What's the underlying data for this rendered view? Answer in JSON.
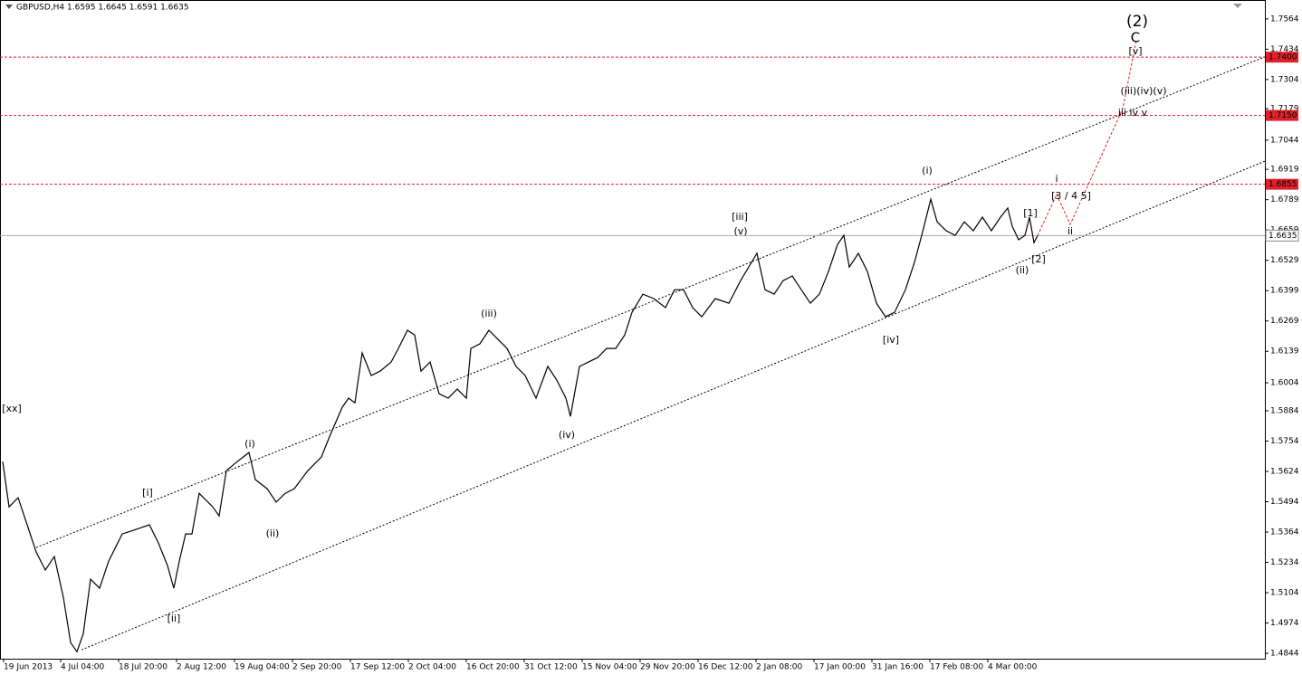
{
  "chart_data": {
    "type": "line",
    "title": "GBPUSD,H4  1.6595 1.6645 1.6591 1.6635",
    "xlim": [
      0,
      1397
    ],
    "xticks": [
      {
        "value": 4,
        "label": "19 Jun 2013"
      },
      {
        "value": 67,
        "label": "4 Jul 04:00"
      },
      {
        "value": 131,
        "label": "18 Jul 20:00"
      },
      {
        "value": 195,
        "label": "2 Aug 12:00"
      },
      {
        "value": 259,
        "label": "19 Aug 04:00"
      },
      {
        "value": 323,
        "label": "2 Sep 20:00"
      },
      {
        "value": 387,
        "label": "17 Sep 12:00"
      },
      {
        "value": 451,
        "label": "2 Oct 04:00"
      },
      {
        "value": 515,
        "label": "16 Oct 20:00"
      },
      {
        "value": 579,
        "label": "31 Oct 12:00"
      },
      {
        "value": 643,
        "label": "15 Nov 04:00"
      },
      {
        "value": 707,
        "label": "29 Nov 20:00"
      },
      {
        "value": 771,
        "label": "16 Dec 12:00"
      },
      {
        "value": 835,
        "label": "2 Jan 08:00"
      },
      {
        "value": 899,
        "label": "17 Jan 00:00"
      },
      {
        "value": 963,
        "label": "31 Jan 16:00"
      },
      {
        "value": 1027,
        "label": "17 Feb 08:00"
      },
      {
        "value": 1091,
        "label": "4 Mar 00:00"
      }
    ],
    "ylim": [
      1.4821,
      1.7645
    ],
    "yticks": [
      1.7564,
      1.7434,
      1.7304,
      1.7179,
      1.7044,
      1.6919,
      1.6789,
      1.6659,
      1.6529,
      1.6399,
      1.6269,
      1.6139,
      1.6004,
      1.5884,
      1.5754,
      1.5624,
      1.5494,
      1.5364,
      1.5234,
      1.5104,
      1.4974,
      1.4844
    ],
    "series": [
      {
        "color": "#000000",
        "dashed": false,
        "x": [
          3,
          10,
          20,
          30,
          40,
          50,
          60,
          70,
          78,
          85,
          92,
          100,
          110,
          120,
          135,
          150,
          165,
          175,
          185,
          192,
          198,
          205,
          212,
          220,
          235,
          242,
          250,
          262,
          275,
          282,
          295,
          305,
          315,
          325,
          340,
          355,
          365,
          378,
          385,
          392,
          400,
          410,
          420,
          432,
          440,
          450,
          458,
          465,
          475,
          485,
          495,
          505,
          515,
          520,
          530,
          540,
          550,
          560,
          570,
          580,
          592,
          605,
          615,
          625,
          630,
          640,
          650,
          660,
          670,
          680,
          690,
          698,
          710,
          722,
          735,
          745,
          755,
          765,
          775,
          790,
          805,
          818,
          830,
          836,
          845,
          855,
          865,
          875,
          885,
          895,
          905,
          915,
          925,
          932,
          938,
          948,
          958,
          968,
          978,
          988,
          1000,
          1010,
          1018,
          1028,
          1035,
          1045,
          1055,
          1065,
          1075,
          1085,
          1095,
          1105,
          1113,
          1118,
          1125,
          1132,
          1137,
          1142,
          1146
        ],
        "values": [
          1.5666,
          1.5472,
          1.5511,
          1.5395,
          1.5278,
          1.5201,
          1.5259,
          1.5084,
          1.489,
          1.4851,
          1.4929,
          1.5162,
          1.5123,
          1.5239,
          1.5356,
          1.5375,
          1.5395,
          1.5317,
          1.522,
          1.5123,
          1.5239,
          1.5356,
          1.5356,
          1.553,
          1.5472,
          1.5433,
          1.5627,
          1.5666,
          1.5705,
          1.5589,
          1.555,
          1.5492,
          1.553,
          1.555,
          1.5627,
          1.5686,
          1.5783,
          1.5899,
          1.5938,
          1.5918,
          1.6132,
          1.6035,
          1.6054,
          1.6093,
          1.6151,
          1.6229,
          1.6209,
          1.6054,
          1.6093,
          1.5957,
          1.5938,
          1.5977,
          1.5938,
          1.6151,
          1.6171,
          1.6229,
          1.619,
          1.6151,
          1.6074,
          1.6035,
          1.5938,
          1.6074,
          1.6015,
          1.5938,
          1.586,
          1.6074,
          1.6093,
          1.6112,
          1.6151,
          1.6151,
          1.6209,
          1.6306,
          1.6384,
          1.6365,
          1.6326,
          1.6403,
          1.6403,
          1.6326,
          1.6287,
          1.6365,
          1.6345,
          1.6442,
          1.652,
          1.6559,
          1.6403,
          1.6384,
          1.6442,
          1.6462,
          1.6403,
          1.6345,
          1.6384,
          1.6481,
          1.6597,
          1.6636,
          1.65,
          1.6559,
          1.6481,
          1.6345,
          1.6287,
          1.6306,
          1.6403,
          1.652,
          1.6636,
          1.6791,
          1.6694,
          1.6656,
          1.6636,
          1.6694,
          1.6656,
          1.6714,
          1.6656,
          1.6714,
          1.6753,
          1.6675,
          1.6617,
          1.6636,
          1.6714,
          1.6605,
          1.6635
        ]
      },
      {
        "color": "#e0202a",
        "dashed": true,
        "x": [
          1146,
          1167,
          1182,
          1240,
          1255
        ],
        "values": [
          1.6635,
          1.6811,
          1.6683,
          1.7179,
          1.747
        ]
      }
    ],
    "channels": [
      {
        "x": [
          40,
          1397
        ],
        "values": [
          1.5298,
          1.7401
        ]
      },
      {
        "x": [
          90,
          1397
        ],
        "values": [
          1.4859,
          1.6954
        ]
      }
    ],
    "levels": {
      "color": "#e0202a",
      "values": [
        1.74,
        1.715,
        1.6855
      ],
      "value_labels": [
        "1.7400",
        "1.7150",
        "1.6855"
      ]
    },
    "last_price": 1.6635,
    "annotations": [
      {
        "text": "[xx]",
        "x": 13,
        "y": 1.5891,
        "color": "#2a8a2a"
      },
      {
        "text": "[i]",
        "x": 163,
        "y": 1.553,
        "color": "#2a8a2a"
      },
      {
        "text": "[ii]",
        "x": 192,
        "y": 1.4991,
        "color": "#2a8a2a"
      },
      {
        "text": "(i)",
        "x": 276,
        "y": 1.574,
        "color": "#2a2aa8"
      },
      {
        "text": "(ii)",
        "x": 301,
        "y": 1.5356,
        "color": "#2a2aa8"
      },
      {
        "text": "(iii)",
        "x": 540,
        "y": 1.6299,
        "color": "#2a2aa8"
      },
      {
        "text": "(iv)",
        "x": 626,
        "y": 1.5779,
        "color": "#2a2aa8"
      },
      {
        "text": "[iii]",
        "x": 817,
        "y": 1.6714,
        "color": "#2a8a2a"
      },
      {
        "text": "(v)",
        "x": 818,
        "y": 1.6652,
        "color": "#2a2aa8"
      },
      {
        "text": "(i)",
        "x": 1024,
        "y": 1.6912,
        "color": "#2a2aa8"
      },
      {
        "text": "[iv]",
        "x": 984,
        "y": 1.6186,
        "color": "#2a8a2a"
      },
      {
        "text": "[1]",
        "x": 1138,
        "y": 1.6729,
        "color": "#2a8a2a"
      },
      {
        "text": "[2]",
        "x": 1147,
        "y": 1.6531,
        "color": "#2a8a2a"
      },
      {
        "text": "(ii)",
        "x": 1129,
        "y": 1.6485,
        "color": "#2a2aa8"
      },
      {
        "text": "i",
        "x": 1167,
        "y": 1.6877,
        "color": "#e0202a"
      },
      {
        "text": "[3 / 4 5]",
        "x": 1183,
        "y": 1.6803,
        "color": "#2a8a2a"
      },
      {
        "text": "ii",
        "x": 1182,
        "y": 1.6652,
        "color": "#e0202a"
      },
      {
        "text": "(iii)(iv)(v)",
        "x": 1263,
        "y": 1.7253,
        "color": "#2a2aa8"
      },
      {
        "text": "iii  iv v",
        "x": 1251,
        "y": 1.716,
        "color": "#e0202a"
      },
      {
        "text": "[v]",
        "x": 1254,
        "y": 1.7424,
        "color": "#2a8a2a"
      },
      {
        "text": "C",
        "x": 1254,
        "y": 1.7482,
        "color": "#e0202a"
      },
      {
        "text": "(2)",
        "x": 1256,
        "y": 1.7552,
        "color": "#2a2aa8"
      }
    ]
  }
}
